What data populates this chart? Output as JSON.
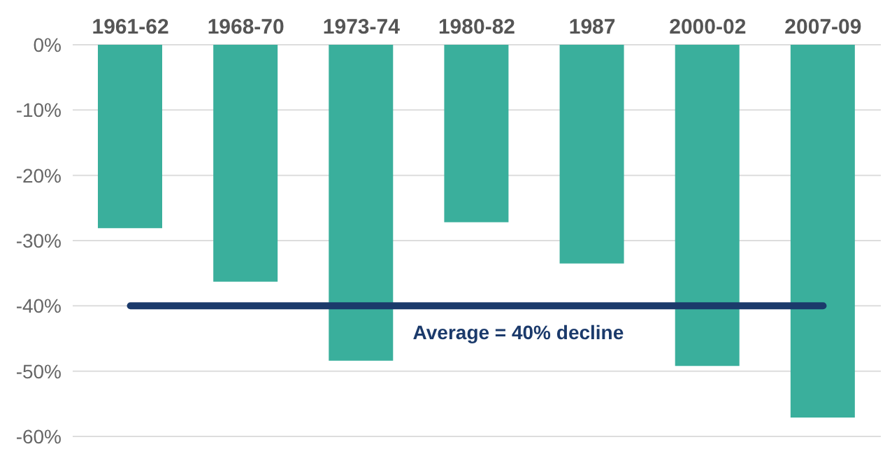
{
  "chart_data": {
    "type": "bar",
    "categories": [
      "1961-62",
      "1968-70",
      "1973-74",
      "1980-82",
      "1987",
      "2000-02",
      "2007-09"
    ],
    "values": [
      -28.1,
      -36.3,
      -48.4,
      -27.2,
      -33.5,
      -49.2,
      -57.1
    ],
    "color": "#3aaf9c",
    "ylim": [
      -60,
      0
    ],
    "yticks": [
      {
        "value": 0,
        "label": "0%"
      },
      {
        "value": -10,
        "label": "-10%"
      },
      {
        "value": -20,
        "label": "-20%"
      },
      {
        "value": -30,
        "label": "-30%"
      },
      {
        "value": -40,
        "label": "-40%"
      },
      {
        "value": -50,
        "label": "-50%"
      },
      {
        "value": -60,
        "label": "-60%"
      }
    ],
    "grid": "y",
    "ref_lines": [
      {
        "axis": "y",
        "value": -40,
        "color": "#1b3a6b"
      }
    ],
    "annotations": [
      "Average = 40% decline"
    ]
  }
}
